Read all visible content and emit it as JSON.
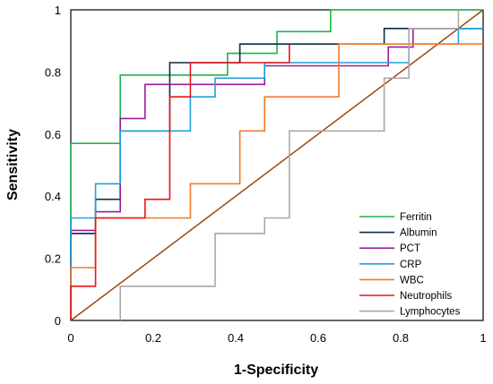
{
  "chart_data": {
    "type": "line",
    "title": "",
    "xlabel": "1-Specificity",
    "ylabel": "Sensitivity",
    "xlim": [
      0,
      1
    ],
    "ylim": [
      0,
      1
    ],
    "x_ticks": [
      "0",
      "0.2",
      "0.4",
      "0.6",
      "0.8",
      "1"
    ],
    "y_ticks": [
      "0",
      "0.2",
      "0.4",
      "0.6",
      "0.8",
      "1"
    ],
    "grid": false,
    "legend_position": "bottom-right",
    "reference_line": {
      "x": [
        0,
        1
      ],
      "y": [
        0,
        1
      ],
      "color": "#A0440C"
    },
    "series": [
      {
        "name": "Ferritin",
        "color": "#22B14C",
        "x": [
          0,
          0,
          0,
          0.12,
          0.12,
          0.38,
          0.38,
          0.5,
          0.5,
          0.63,
          0.63,
          1
        ],
        "y": [
          0,
          0.06,
          0.57,
          0.57,
          0.79,
          0.79,
          0.86,
          0.86,
          0.93,
          0.93,
          1,
          1
        ]
      },
      {
        "name": "Albumin",
        "color": "#0D2B45",
        "x": [
          0,
          0,
          0.06,
          0.06,
          0.12,
          0.12,
          0.24,
          0.24,
          0.41,
          0.41,
          0.53,
          0.53,
          0.76,
          0.76,
          1
        ],
        "y": [
          0.06,
          0.28,
          0.28,
          0.39,
          0.39,
          0.61,
          0.61,
          0.83,
          0.83,
          0.89,
          0.89,
          0.89,
          0.89,
          0.94,
          0.94
        ]
      },
      {
        "name": "PCT",
        "color": "#9B1C9C",
        "x": [
          0,
          0,
          0.06,
          0.06,
          0.12,
          0.12,
          0.18,
          0.18,
          0.47,
          0.47,
          0.77,
          0.77,
          0.83,
          0.83,
          1
        ],
        "y": [
          0,
          0.29,
          0.29,
          0.35,
          0.35,
          0.65,
          0.65,
          0.76,
          0.76,
          0.82,
          0.82,
          0.88,
          0.88,
          0.94,
          0.94
        ]
      },
      {
        "name": "CRP",
        "color": "#1FA1DB",
        "x": [
          0,
          0,
          0.06,
          0.06,
          0.12,
          0.12,
          0.29,
          0.29,
          0.35,
          0.35,
          0.47,
          0.47,
          0.82,
          0.82,
          0.94,
          0.94,
          1
        ],
        "y": [
          0.06,
          0.33,
          0.33,
          0.44,
          0.44,
          0.61,
          0.61,
          0.72,
          0.72,
          0.78,
          0.78,
          0.83,
          0.83,
          0.89,
          0.89,
          0.94,
          0.94
        ]
      },
      {
        "name": "WBC",
        "color": "#F07A2C",
        "x": [
          0,
          0,
          0.06,
          0.06,
          0.29,
          0.29,
          0.41,
          0.41,
          0.47,
          0.47,
          0.65,
          0.65,
          0.94,
          0.94,
          1
        ],
        "y": [
          0,
          0.17,
          0.17,
          0.33,
          0.33,
          0.44,
          0.44,
          0.61,
          0.61,
          0.72,
          0.72,
          0.89,
          0.89,
          0.89,
          0.89
        ]
      },
      {
        "name": "Neutrophils",
        "color": "#E8151B",
        "x": [
          0,
          0,
          0.06,
          0.06,
          0.18,
          0.18,
          0.24,
          0.24,
          0.29,
          0.29,
          0.53,
          0.53,
          0.53
        ],
        "y": [
          0,
          0.11,
          0.11,
          0.33,
          0.33,
          0.39,
          0.39,
          0.72,
          0.72,
          0.83,
          0.83,
          0.89,
          0.89
        ]
      },
      {
        "name": "Lymphocytes",
        "color": "#A8A8A8",
        "x": [
          0.12,
          0.12,
          0.35,
          0.35,
          0.47,
          0.47,
          0.53,
          0.53,
          0.76,
          0.76,
          0.82,
          0.82,
          0.94,
          0.94
        ],
        "y": [
          0,
          0.11,
          0.11,
          0.28,
          0.28,
          0.33,
          0.33,
          0.61,
          0.61,
          0.78,
          0.78,
          0.94,
          0.94,
          1
        ]
      }
    ]
  }
}
